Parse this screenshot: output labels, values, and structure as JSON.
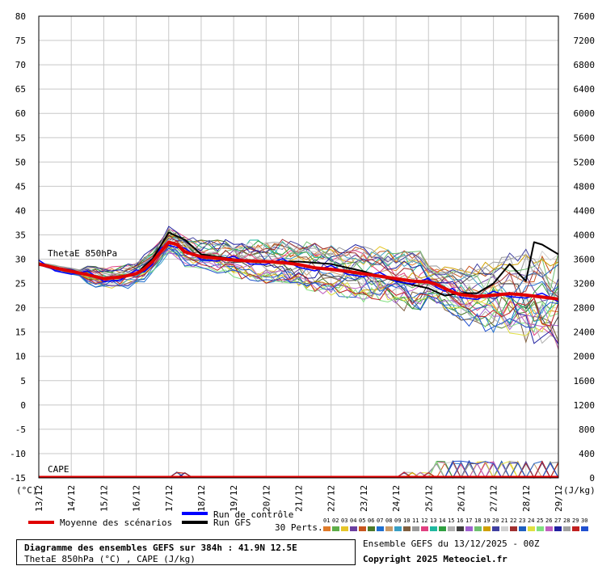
{
  "chart_data": {
    "type": "line",
    "title": "Diagramme des ensembles GEFS sur 384h : 41.9N 12.5E",
    "subtitle": "ThetaE 850hPa (°C) , CAPE (J/kg)",
    "left_axis": {
      "unit_label": "(°C)",
      "ylim": [
        -15,
        80
      ],
      "ticks": [
        80,
        75,
        70,
        65,
        60,
        55,
        50,
        45,
        40,
        35,
        30,
        25,
        20,
        15,
        10,
        5,
        0,
        -5,
        -10,
        -15
      ]
    },
    "right_axis": {
      "unit_label": "(J/kg)",
      "ticks": [
        7600,
        7200,
        6800,
        6400,
        6000,
        5600,
        5200,
        4800,
        4400,
        4000,
        3600,
        3200,
        2800,
        2400,
        2000,
        1600,
        1200,
        800,
        400,
        0
      ]
    },
    "x_ticks": [
      "13/12",
      "14/12",
      "15/12",
      "16/12",
      "17/12",
      "18/12",
      "19/12",
      "20/12",
      "21/12",
      "22/12",
      "23/12",
      "24/12",
      "25/12",
      "26/12",
      "27/12",
      "28/12",
      "29/12"
    ],
    "panel_labels": {
      "thetae": "ThetaE 850hPa",
      "cape": "CAPE"
    },
    "grid": true,
    "series_mean": {
      "name": "Moyenne des scénarios",
      "color": "#e00000",
      "x": [
        0,
        0.5,
        1,
        1.5,
        2,
        2.5,
        3,
        3.25,
        3.5,
        3.75,
        4,
        4.25,
        4.5,
        5,
        5.5,
        6,
        6.5,
        7,
        7.5,
        8,
        8.5,
        9,
        9.5,
        10,
        10.5,
        11,
        11.5,
        12,
        12.25,
        12.5,
        12.75,
        13,
        13.5,
        14,
        14.5,
        15,
        15.5,
        16
      ],
      "y": [
        29,
        28.2,
        27.5,
        26.8,
        26,
        26.3,
        27,
        28,
        29.5,
        31.5,
        33.5,
        33,
        31.5,
        30.5,
        30.2,
        29.8,
        29.6,
        29.5,
        29.3,
        28.9,
        28.2,
        27.9,
        27.5,
        27,
        26.5,
        26,
        25.5,
        25.3,
        24.8,
        24,
        23.2,
        22.7,
        22.3,
        22.6,
        22.9,
        22.6,
        22.2,
        21.8
      ]
    },
    "series_control": {
      "name": "Run de contrôle",
      "color": "#0000ff"
    },
    "series_gfs": {
      "name": "Run GFS",
      "color": "#000000",
      "x": [
        0,
        1,
        2,
        3,
        3.5,
        4,
        4.5,
        5,
        6,
        7,
        8,
        9,
        10,
        11,
        12,
        12.5,
        13,
        13.5,
        14,
        14.5,
        15,
        15.25,
        15.5,
        16
      ],
      "y": [
        29,
        27.5,
        26,
        27,
        30,
        35.5,
        34,
        31,
        30,
        29.5,
        29.5,
        29,
        27.5,
        25.5,
        24,
        22.5,
        23,
        23,
        25,
        29,
        25.5,
        33.5,
        33,
        31
      ]
    },
    "perturbations_label": "30 Perts.",
    "perturbation_ids": [
      "01",
      "02",
      "03",
      "04",
      "05",
      "06",
      "07",
      "08",
      "09",
      "10",
      "11",
      "12",
      "13",
      "14",
      "15",
      "16",
      "17",
      "18",
      "19",
      "20",
      "21",
      "22",
      "23",
      "24",
      "25",
      "26",
      "27",
      "28",
      "29",
      "30"
    ],
    "perturbation_colors": [
      "#e07b2a",
      "#5fae4a",
      "#e6c62a",
      "#6b3fa0",
      "#c8551e",
      "#4d7a2a",
      "#1f6fd0",
      "#c89a68",
      "#3a9fc4",
      "#806040",
      "#9a9a9a",
      "#e04080",
      "#20b8a0",
      "#30a040",
      "#b0b0b0",
      "#404040",
      "#a060d0",
      "#70c070",
      "#d0a000",
      "#4040a0",
      "#d0d0d0",
      "#a03030",
      "#2060c0",
      "#e0e040",
      "#80e080",
      "#c060c0",
      "#2020a0",
      "#a0a0a0",
      "#c02020",
      "#2050d0"
    ]
  },
  "footer": {
    "title": "Diagramme des ensembles GEFS sur 384h : 41.9N 12.5E",
    "subtitle": "ThetaE 850hPa (°C) , CAPE (J/kg)",
    "run_info": "Ensemble GEFS du 13/12/2025 - 00Z",
    "copyright": "Copyright 2025 Meteociel.fr"
  }
}
